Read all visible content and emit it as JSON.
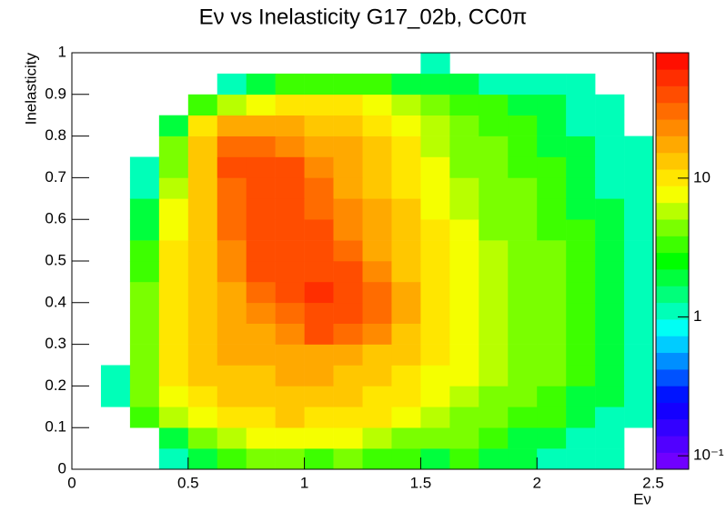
{
  "chart_data": {
    "type": "heatmap",
    "title": "Eν vs Inelasticity G17_02b, CC0π",
    "x_label": "Eν",
    "y_label": "Inelasticity",
    "xbins": [
      0,
      0.125,
      0.25,
      0.375,
      0.5,
      0.625,
      0.75,
      0.875,
      1,
      1.125,
      1.25,
      1.375,
      1.5,
      1.625,
      1.75,
      1.875,
      2,
      2.125,
      2.25,
      2.375,
      2.5
    ],
    "ybins": [
      0,
      0.05,
      0.1,
      0.15,
      0.2,
      0.25,
      0.3,
      0.35,
      0.4,
      0.45,
      0.5,
      0.55,
      0.6,
      0.65,
      0.7,
      0.75,
      0.8,
      0.85,
      0.9,
      0.95,
      1
    ],
    "z": [
      [
        0,
        0,
        0,
        1,
        2,
        3,
        4,
        4,
        3,
        4,
        3,
        3,
        2,
        3,
        2,
        2,
        1,
        1,
        1,
        0
      ],
      [
        0,
        0,
        0,
        2,
        5,
        6,
        8,
        8,
        8,
        7,
        6,
        5,
        4,
        4,
        3,
        2,
        2,
        1,
        1,
        0
      ],
      [
        0,
        0,
        3,
        6,
        8,
        10,
        11,
        12,
        11,
        10,
        9,
        7,
        6,
        5,
        4,
        3,
        3,
        2,
        1,
        1
      ],
      [
        0,
        1,
        4,
        8,
        10,
        12,
        13,
        14,
        13,
        12,
        11,
        9,
        7,
        6,
        5,
        4,
        3,
        2,
        2,
        1
      ],
      [
        0,
        1,
        5,
        9,
        12,
        14,
        15,
        16,
        16,
        15,
        13,
        11,
        8,
        7,
        6,
        5,
        4,
        3,
        2,
        1
      ],
      [
        0,
        0,
        5,
        10,
        13,
        16,
        18,
        20,
        20,
        18,
        15,
        12,
        9,
        7,
        6,
        5,
        4,
        3,
        2,
        1
      ],
      [
        0,
        0,
        5,
        10,
        14,
        17,
        20,
        25,
        35,
        30,
        22,
        15,
        10,
        8,
        6,
        5,
        4,
        3,
        2,
        1
      ],
      [
        0,
        0,
        5,
        10,
        14,
        18,
        22,
        30,
        45,
        45,
        30,
        16,
        11,
        8,
        6,
        5,
        4,
        3,
        2,
        1
      ],
      [
        0,
        0,
        4,
        10,
        15,
        20,
        28,
        40,
        50,
        45,
        28,
        16,
        11,
        8,
        6,
        5,
        4,
        3,
        2,
        1
      ],
      [
        0,
        0,
        3,
        9,
        15,
        22,
        35,
        45,
        45,
        35,
        24,
        15,
        10,
        8,
        6,
        5,
        4,
        3,
        2,
        1
      ],
      [
        0,
        0,
        3,
        9,
        15,
        25,
        40,
        45,
        40,
        30,
        20,
        14,
        10,
        7,
        6,
        5,
        4,
        3,
        2,
        1
      ],
      [
        0,
        0,
        2,
        8,
        15,
        28,
        45,
        45,
        35,
        25,
        18,
        13,
        9,
        7,
        5,
        4,
        3,
        3,
        2,
        1
      ],
      [
        0,
        0,
        2,
        7,
        14,
        30,
        45,
        45,
        30,
        22,
        16,
        12,
        8,
        6,
        5,
        4,
        3,
        2,
        2,
        1
      ],
      [
        0,
        0,
        1,
        6,
        14,
        32,
        45,
        40,
        28,
        20,
        14,
        10,
        8,
        6,
        5,
        4,
        3,
        2,
        1,
        1
      ],
      [
        0,
        0,
        1,
        5,
        14,
        35,
        42,
        35,
        25,
        18,
        13,
        10,
        7,
        5,
        4,
        3,
        3,
        2,
        1,
        1
      ],
      [
        0,
        0,
        0,
        4,
        12,
        28,
        30,
        25,
        20,
        16,
        12,
        9,
        6,
        5,
        4,
        3,
        2,
        2,
        1,
        1
      ],
      [
        0,
        0,
        0,
        2,
        9,
        16,
        18,
        16,
        14,
        12,
        10,
        8,
        6,
        4,
        3,
        3,
        2,
        1,
        1,
        0
      ],
      [
        0,
        0,
        0,
        0,
        3,
        6,
        8,
        9,
        9,
        9,
        7,
        6,
        5,
        3,
        3,
        2,
        2,
        1,
        1,
        0
      ],
      [
        0,
        0,
        0,
        0,
        0,
        1,
        2,
        3,
        3,
        3,
        3,
        2,
        2,
        2,
        1,
        1,
        1,
        1,
        0,
        0
      ],
      [
        0,
        0,
        0,
        0,
        0,
        0,
        0,
        0,
        0,
        0,
        0,
        0,
        1,
        0,
        0,
        0,
        0,
        0,
        0,
        0
      ]
    ],
    "xlim": [
      0,
      2.5
    ],
    "xticks": [
      0,
      0.5,
      1,
      1.5,
      2,
      2.5
    ],
    "ylim": [
      0,
      1
    ],
    "yticks": [
      0,
      0.1,
      0.2,
      0.3,
      0.4,
      0.5,
      0.6,
      0.7,
      0.8,
      0.9,
      1
    ],
    "zlim": [
      0.08,
      80
    ],
    "zlog": true,
    "zticks": [
      {
        "value": 0.1,
        "label": "10⁻¹"
      },
      1,
      10
    ],
    "palette": [
      "#7f00ff",
      "#0000ff",
      "#00ffff",
      "#00ff00",
      "#ffff00",
      "#ff8000",
      "#ff0000"
    ],
    "palette_steps": 25
  }
}
